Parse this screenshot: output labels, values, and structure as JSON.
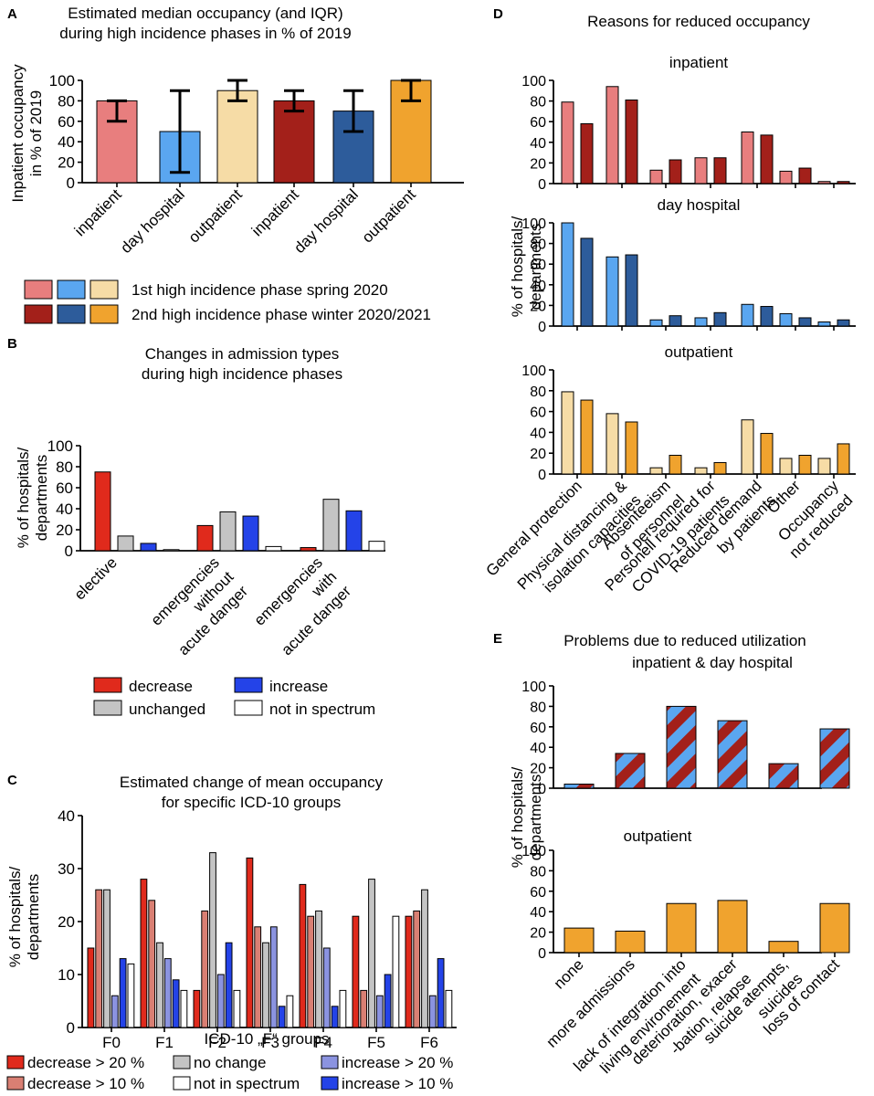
{
  "colors": {
    "light_red": "#e87e7e",
    "light_blue": "#5aa6f0",
    "light_yellow": "#f6dca6",
    "dark_red": "#a3201a",
    "dark_blue": "#2d5c9b",
    "orange": "#f0a32e",
    "decrease": "#e02a1c",
    "unchanged": "#c4c4c4",
    "increase": "#2443e8",
    "not_in_spectrum": "#ffffff",
    "dec10": "#d97f73",
    "inc20": "#8b93e0"
  },
  "chart_data": [
    {
      "id": "A",
      "panel_letter": "A",
      "type": "bar",
      "title": [
        "Estimated median occupancy (and IQR)",
        "during high incidence phases in % of 2019"
      ],
      "ylabel": [
        "Inpatient occupancy",
        "in % of 2019"
      ],
      "ylim": [
        0,
        100
      ],
      "yticks": [
        "0",
        "20",
        "40",
        "60",
        "80",
        "100"
      ],
      "categories": [
        "inpatient",
        "day hospital",
        "outpatient",
        "inpatient",
        "day hospital",
        "outpatient"
      ],
      "values": [
        80,
        50,
        90,
        80,
        70,
        100
      ],
      "iqr": [
        [
          60,
          80
        ],
        [
          10,
          90
        ],
        [
          80,
          100
        ],
        [
          70,
          90
        ],
        [
          50,
          90
        ],
        [
          80,
          100
        ]
      ],
      "bar_colors": [
        "light_red",
        "light_blue",
        "light_yellow",
        "dark_red",
        "dark_blue",
        "orange"
      ],
      "legend": [
        {
          "label": "1st high incidence phase spring 2020",
          "colors": [
            "light_red",
            "light_blue",
            "light_yellow"
          ]
        },
        {
          "label": "2nd high incidence phase winter 2020/2021",
          "colors": [
            "dark_red",
            "dark_blue",
            "orange"
          ]
        }
      ]
    },
    {
      "id": "B",
      "panel_letter": "B",
      "type": "bar",
      "title": [
        "Changes in admission types",
        "during high incidence phases"
      ],
      "ylabel": [
        "% of hospitals/",
        "departments"
      ],
      "ylim": [
        0,
        100
      ],
      "yticks": [
        "0",
        "20",
        "40",
        "60",
        "80",
        "100"
      ],
      "categories": [
        [
          "elective"
        ],
        [
          "emergencies",
          "without",
          "acute danger"
        ],
        [
          "emergencies",
          "with",
          "acute danger"
        ]
      ],
      "series": [
        {
          "name": "decrease",
          "color": "decrease",
          "values": [
            75,
            24,
            3
          ]
        },
        {
          "name": "unchanged",
          "color": "unchanged",
          "values": [
            14,
            37,
            49
          ]
        },
        {
          "name": "increase",
          "color": "increase",
          "values": [
            7,
            33,
            38
          ]
        },
        {
          "name": "not in spectrum",
          "color": "not_in_spectrum",
          "values": [
            1,
            4,
            9
          ]
        }
      ]
    },
    {
      "id": "C",
      "panel_letter": "C",
      "type": "bar",
      "title": [
        "Estimated change of mean occupancy",
        "for specific ICD-10 groups"
      ],
      "ylabel": [
        "% of hospitals/",
        "departments"
      ],
      "xlabel": "ICD-10 „F“ groups",
      "ylim": [
        0,
        40
      ],
      "yticks": [
        "0",
        "10",
        "20",
        "30",
        "40"
      ],
      "categories": [
        "F0",
        "F1",
        "F2",
        "F3",
        "F4",
        "F5",
        "F6"
      ],
      "series": [
        {
          "name": "decrease > 20 %",
          "color": "decrease",
          "values": [
            15,
            28,
            7,
            32,
            27,
            21,
            21
          ]
        },
        {
          "name": "decrease > 10 %",
          "color": "dec10",
          "values": [
            26,
            24,
            22,
            19,
            21,
            7,
            22
          ]
        },
        {
          "name": "no change",
          "color": "unchanged",
          "values": [
            26,
            16,
            33,
            16,
            22,
            28,
            26
          ]
        },
        {
          "name": "increase > 20 %",
          "color": "inc20",
          "values": [
            6,
            13,
            10,
            19,
            15,
            6,
            6
          ]
        },
        {
          "name": "increase > 10 %",
          "color": "increase",
          "values": [
            13,
            9,
            16,
            4,
            4,
            10,
            13
          ]
        },
        {
          "name": "not in spectrum",
          "color": "not_in_spectrum",
          "values": [
            12,
            7,
            7,
            6,
            7,
            21,
            7
          ]
        }
      ],
      "legend_order": [
        "decrease > 20 %",
        "no change",
        "increase > 20 %",
        "decrease > 10 %",
        "not in spectrum",
        "increase > 10 %"
      ]
    },
    {
      "id": "D",
      "panel_letter": "D",
      "type": "bar",
      "title": [
        "Reasons for reduced occupancy"
      ],
      "ylabel": [
        "% of hospitals/",
        "departments"
      ],
      "ylim": [
        0,
        100
      ],
      "yticks": [
        "0",
        "20",
        "40",
        "60",
        "80",
        "100"
      ],
      "categories": [
        [
          "General protection"
        ],
        [
          "Physical distancing &",
          "isolation capacities"
        ],
        [
          "Absenteeism",
          "of personnel"
        ],
        [
          "Personell required for",
          "COVID-19 patients"
        ],
        [
          "Reduced demand",
          "by patients"
        ],
        [
          "Other"
        ],
        [
          "Occupancy",
          "not reduced"
        ]
      ],
      "subplots": [
        {
          "name": "inpatient",
          "colors": [
            "light_red",
            "dark_red"
          ],
          "first": [
            79,
            94,
            13,
            25,
            50,
            12,
            2
          ],
          "second": [
            58,
            81,
            23,
            25,
            47,
            15,
            2
          ]
        },
        {
          "name": "day hospital",
          "colors": [
            "light_blue",
            "dark_blue"
          ],
          "first": [
            100,
            67,
            6,
            8,
            21,
            12,
            4
          ],
          "second": [
            85,
            69,
            10,
            13,
            19,
            8,
            6
          ]
        },
        {
          "name": "outpatient",
          "colors": [
            "light_yellow",
            "orange"
          ],
          "first": [
            79,
            58,
            6,
            6,
            52,
            15,
            15
          ],
          "second": [
            71,
            50,
            18,
            11,
            39,
            18,
            29
          ]
        }
      ]
    },
    {
      "id": "E",
      "panel_letter": "E",
      "type": "bar",
      "title": [
        "Problems due to reduced utilization"
      ],
      "ylabel": [
        "% of hospitals/",
        "departments"
      ],
      "ylim": [
        0,
        100
      ],
      "yticks": [
        "0",
        "20",
        "40",
        "60",
        "80",
        "100"
      ],
      "categories": [
        [
          "none"
        ],
        [
          "more admissions"
        ],
        [
          "lack of integration into",
          "living environement"
        ],
        [
          "deterioration, exacer",
          "-bation, relapse"
        ],
        [
          "suicide atempts,",
          "suicides"
        ],
        [
          "loss of contact"
        ]
      ],
      "subplots": [
        {
          "name": "inpatient & day hospital",
          "pattern": "striped",
          "values": [
            4,
            34,
            80,
            66,
            24,
            58
          ]
        },
        {
          "name": "outpatient",
          "pattern": "solid",
          "values": [
            24,
            21,
            48,
            51,
            11,
            48
          ]
        }
      ]
    }
  ]
}
